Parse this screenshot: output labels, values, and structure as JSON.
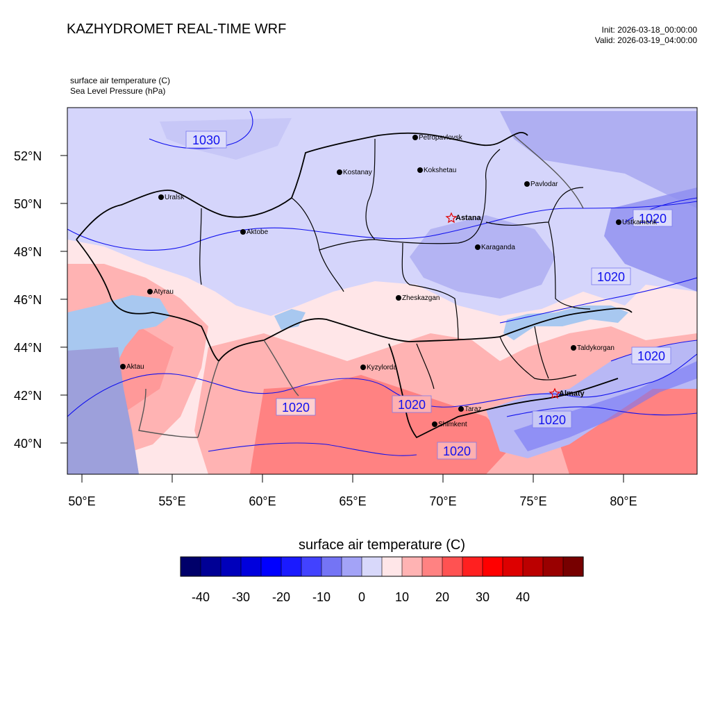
{
  "header": {
    "title": "KAZHYDROMET REAL-TIME WRF",
    "init": "Init: 2026-03-18_00:00:00",
    "valid": "Valid: 2026-03-19_04:00:00",
    "var1": "surface air temperature   (C)",
    "var2": "Sea Level Pressure   (hPa)"
  },
  "axes": {
    "lat_labels": [
      "52°N",
      "50°N",
      "48°N",
      "46°N",
      "44°N",
      "42°N",
      "40°N"
    ],
    "lon_labels": [
      "50°E",
      "55°E",
      "60°E",
      "65°E",
      "70°E",
      "75°E",
      "80°E"
    ]
  },
  "cities": [
    {
      "name": "Petropavlovsk"
    },
    {
      "name": "Kostanay"
    },
    {
      "name": "Kokshetau"
    },
    {
      "name": "Pavlodar"
    },
    {
      "name": "Uralsk"
    },
    {
      "name": "Aktobe"
    },
    {
      "name": "Ustkamenk"
    },
    {
      "name": "Karaganda"
    },
    {
      "name": "Atyrau"
    },
    {
      "name": "Zheskazgan"
    },
    {
      "name": "Taldykorgan"
    },
    {
      "name": "Aktau"
    },
    {
      "name": "Kyzylorda"
    },
    {
      "name": "Taraz"
    },
    {
      "name": "Shimkent"
    }
  ],
  "capitals": [
    {
      "name": "Astana"
    },
    {
      "name": "Almaty"
    }
  ],
  "isobars": [
    "1030",
    "1020",
    "1020",
    "1020",
    "1020",
    "1020",
    "1020",
    "1020"
  ],
  "colorbar": {
    "title": "surface air temperature  (C)",
    "colors": [
      "#00006a",
      "#000095",
      "#0000bb",
      "#0000dd",
      "#0000ff",
      "#1a1aff",
      "#4242ff",
      "#7474f5",
      "#a3a3f7",
      "#d8d8fa",
      "#ffe6e8",
      "#ffb3b3",
      "#ff8282",
      "#ff5252",
      "#ff2020",
      "#ff0000",
      "#dd0000",
      "#bb0000",
      "#990000",
      "#770000"
    ],
    "labels": [
      "-40",
      "-30",
      "-20",
      "-10",
      "0",
      "10",
      "20",
      "30",
      "40"
    ]
  },
  "colors": {
    "cold_light": "#d5d5fb",
    "cold_mid": "#a8a8f0",
    "warm_light": "#ffe6e8",
    "warm_mid": "#ffb3b3",
    "warm_strong": "#ff8282",
    "water": "#a8c8f0",
    "isobar": "#1010ee"
  }
}
